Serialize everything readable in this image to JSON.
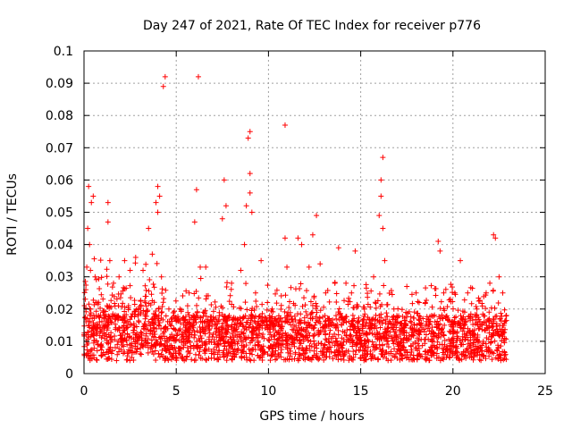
{
  "chart_data": {
    "type": "scatter",
    "title": "Day 247 of 2021, Rate Of TEC Index for receiver p776",
    "xlabel": "GPS time / hours",
    "ylabel": "ROTI / TECUs",
    "xlim": [
      0,
      25
    ],
    "ylim": [
      0,
      0.1
    ],
    "x_ticks": [
      "0",
      "5",
      "10",
      "15",
      "20",
      "25"
    ],
    "y_ticks": [
      "0",
      "0.01",
      "0.02",
      "0.03",
      "0.04",
      "0.05",
      "0.06",
      "0.07",
      "0.08",
      "0.09",
      "0.1"
    ],
    "x_tick_values": [
      0,
      5,
      10,
      15,
      20,
      25
    ],
    "y_tick_values": [
      0,
      0.01,
      0.02,
      0.03,
      0.04,
      0.05,
      0.06,
      0.07,
      0.08,
      0.09,
      0.1
    ],
    "grid": true,
    "marker": "+",
    "color": "#ff0000",
    "series": [
      {
        "points": [
          [
            0.0,
            0.012
          ],
          [
            0.1,
            0.026
          ],
          [
            0.15,
            0.033
          ],
          [
            0.2,
            0.045
          ],
          [
            0.25,
            0.058
          ],
          [
            0.3,
            0.04
          ],
          [
            0.35,
            0.032
          ],
          [
            0.4,
            0.053
          ],
          [
            0.5,
            0.055
          ],
          [
            0.6,
            0.03
          ],
          [
            0.7,
            0.022
          ],
          [
            0.9,
            0.018
          ],
          [
            1.3,
            0.053
          ],
          [
            1.3,
            0.047
          ],
          [
            1.4,
            0.035
          ],
          [
            1.6,
            0.028
          ],
          [
            1.9,
            0.03
          ],
          [
            2.2,
            0.035
          ],
          [
            2.5,
            0.032
          ],
          [
            2.8,
            0.036
          ],
          [
            3.2,
            0.032
          ],
          [
            3.5,
            0.045
          ],
          [
            3.7,
            0.037
          ],
          [
            3.9,
            0.053
          ],
          [
            4.0,
            0.05
          ],
          [
            4.0,
            0.058
          ],
          [
            4.1,
            0.055
          ],
          [
            4.2,
            0.03
          ],
          [
            4.3,
            0.089
          ],
          [
            4.4,
            0.092
          ],
          [
            4.6,
            0.02
          ],
          [
            5.2,
            0.02
          ],
          [
            5.7,
            0.025
          ],
          [
            6.0,
            0.047
          ],
          [
            6.1,
            0.057
          ],
          [
            6.2,
            0.092
          ],
          [
            6.3,
            0.033
          ],
          [
            6.6,
            0.033
          ],
          [
            7.5,
            0.048
          ],
          [
            7.6,
            0.06
          ],
          [
            7.7,
            0.052
          ],
          [
            8.0,
            0.028
          ],
          [
            8.5,
            0.032
          ],
          [
            8.7,
            0.04
          ],
          [
            8.8,
            0.052
          ],
          [
            8.9,
            0.073
          ],
          [
            9.0,
            0.075
          ],
          [
            9.0,
            0.062
          ],
          [
            9.0,
            0.056
          ],
          [
            9.1,
            0.05
          ],
          [
            9.3,
            0.025
          ],
          [
            9.6,
            0.035
          ],
          [
            10.2,
            0.02
          ],
          [
            10.9,
            0.077
          ],
          [
            10.9,
            0.042
          ],
          [
            11.0,
            0.033
          ],
          [
            11.6,
            0.042
          ],
          [
            11.8,
            0.04
          ],
          [
            12.2,
            0.033
          ],
          [
            12.4,
            0.043
          ],
          [
            12.6,
            0.049
          ],
          [
            12.8,
            0.034
          ],
          [
            13.1,
            0.025
          ],
          [
            13.6,
            0.028
          ],
          [
            13.8,
            0.039
          ],
          [
            14.2,
            0.028
          ],
          [
            14.5,
            0.025
          ],
          [
            14.7,
            0.038
          ],
          [
            15.2,
            0.02
          ],
          [
            15.7,
            0.03
          ],
          [
            16.0,
            0.049
          ],
          [
            16.1,
            0.055
          ],
          [
            16.1,
            0.06
          ],
          [
            16.2,
            0.067
          ],
          [
            16.2,
            0.045
          ],
          [
            16.3,
            0.035
          ],
          [
            16.8,
            0.02
          ],
          [
            17.5,
            0.027
          ],
          [
            18.0,
            0.025
          ],
          [
            18.5,
            0.022
          ],
          [
            19.2,
            0.041
          ],
          [
            19.3,
            0.038
          ],
          [
            19.5,
            0.025
          ],
          [
            20.1,
            0.025
          ],
          [
            20.4,
            0.035
          ],
          [
            20.8,
            0.025
          ],
          [
            21.3,
            0.02
          ],
          [
            21.8,
            0.025
          ],
          [
            22.0,
            0.028
          ],
          [
            22.2,
            0.043
          ],
          [
            22.3,
            0.042
          ],
          [
            22.5,
            0.03
          ],
          [
            22.7,
            0.025
          ],
          [
            22.9,
            0.018
          ]
        ]
      }
    ]
  }
}
